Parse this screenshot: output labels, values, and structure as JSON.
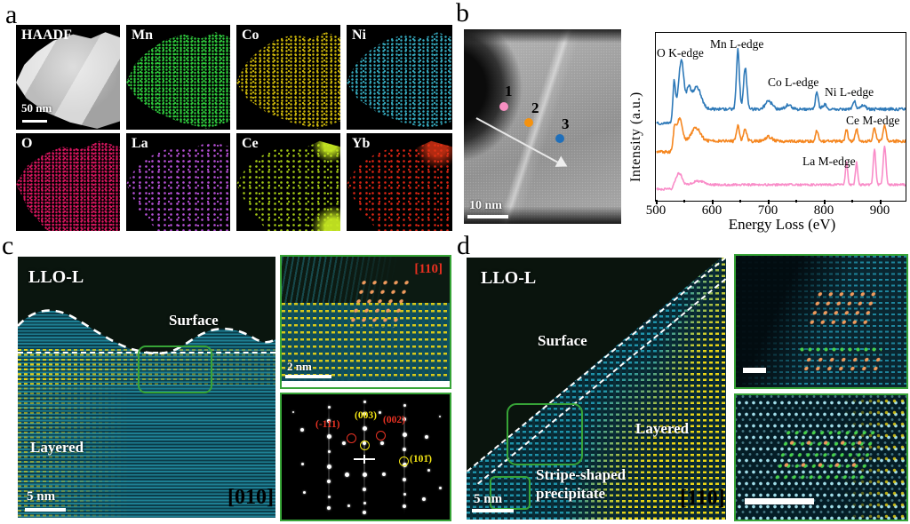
{
  "panel_a": {
    "letter": "a",
    "scalebar": "50 nm",
    "tiles": [
      {
        "label": "HAADF",
        "color": "#d9d9d9"
      },
      {
        "label": "Mn",
        "color": "#2ec83c"
      },
      {
        "label": "Co",
        "color": "#cdb70a"
      },
      {
        "label": "Ni",
        "color": "#35a9bd"
      },
      {
        "label": "O",
        "color": "#d6155e"
      },
      {
        "label": "La",
        "color": "#b44fd4"
      },
      {
        "label": "Ce",
        "color": "#a2c714"
      },
      {
        "label": "Yb",
        "color": "#da2413"
      }
    ]
  },
  "panel_b": {
    "letter": "b",
    "scalebar": "10 nm",
    "points": [
      {
        "label": "1",
        "color": "#f78fc2"
      },
      {
        "label": "2",
        "color": "#f5920f"
      },
      {
        "label": "3",
        "color": "#1f6fba"
      }
    ]
  },
  "chart_data": {
    "type": "line",
    "title": "",
    "xlabel": "Energy Loss (eV)",
    "ylabel": "Intensity (a.u.)",
    "xlim": [
      500,
      945
    ],
    "xticks": [
      500,
      600,
      700,
      800,
      900
    ],
    "grid": false,
    "legend": "none",
    "annotations": [
      {
        "text": "O K-edge"
      },
      {
        "text": "Mn L-edge"
      },
      {
        "text": "Co L-edge"
      },
      {
        "text": "Ni L-edge"
      },
      {
        "text": "Ce M-edge"
      },
      {
        "text": "La M-edge"
      }
    ],
    "series": [
      {
        "name": "point 3 spectrum",
        "color": "#2e79b8",
        "baseline": 86,
        "pre_edge_drop": 16,
        "noise": 1.6,
        "peaks": [
          [
            531,
            34,
            2.2
          ],
          [
            544,
            55,
            4.5
          ],
          [
            557,
            20,
            3.5
          ],
          [
            571,
            25,
            8
          ],
          [
            645,
            67,
            2.6
          ],
          [
            658,
            47,
            3
          ],
          [
            700,
            9,
            6
          ],
          [
            735,
            5,
            5
          ],
          [
            786,
            20,
            2.4
          ],
          [
            800,
            5,
            4
          ],
          [
            853,
            10,
            2.6
          ],
          [
            869,
            5,
            4
          ]
        ]
      },
      {
        "name": "point 2 spectrum",
        "color": "#f5861f",
        "baseline": 122,
        "pre_edge_drop": 12,
        "noise": 1.6,
        "peaks": [
          [
            532,
            16,
            2.5
          ],
          [
            541,
            26,
            4.5
          ],
          [
            570,
            15,
            8
          ],
          [
            645,
            18,
            2.6
          ],
          [
            658,
            13,
            3
          ],
          [
            700,
            5,
            6
          ],
          [
            786,
            12,
            2.4
          ],
          [
            839,
            13,
            2.2
          ],
          [
            857,
            14,
            2.2
          ],
          [
            889,
            15,
            2.4
          ],
          [
            907,
            17,
            2.6
          ]
        ]
      },
      {
        "name": "point 1 spectrum",
        "color": "#f98cc8",
        "baseline": 171,
        "pre_edge_drop": 5,
        "noise": 1.2,
        "peaks": [
          [
            540,
            13,
            5
          ],
          [
            575,
            4,
            10
          ],
          [
            839,
            25,
            2.0
          ],
          [
            857,
            25,
            2.0
          ],
          [
            889,
            40,
            2.2
          ],
          [
            907,
            43,
            2.4
          ]
        ]
      }
    ]
  },
  "panel_c": {
    "letter": "c",
    "sample_label": "LLO-L",
    "surface_label": "Surface",
    "phase_label": "Layered",
    "scalebar": "5 nm",
    "zone_axis": "[010]",
    "inset": {
      "zone_axis": "[110]",
      "scalebar": "2 nm"
    },
    "fft_labels": [
      {
        "text": "(-111)",
        "color": "#e83223"
      },
      {
        "text": "(003)",
        "color": "#f2e414"
      },
      {
        "text": "(002)",
        "color": "#e83223"
      },
      {
        "text": "(101̄)",
        "color": "#f2e414"
      }
    ]
  },
  "panel_d": {
    "letter": "d",
    "sample_label": "LLO-L",
    "surface_label": "Surface",
    "phase_label": "Layered",
    "precipitate_label": "Stripe-shaped precipitate",
    "scalebar": "5 nm",
    "zone_axis": "[110]"
  }
}
